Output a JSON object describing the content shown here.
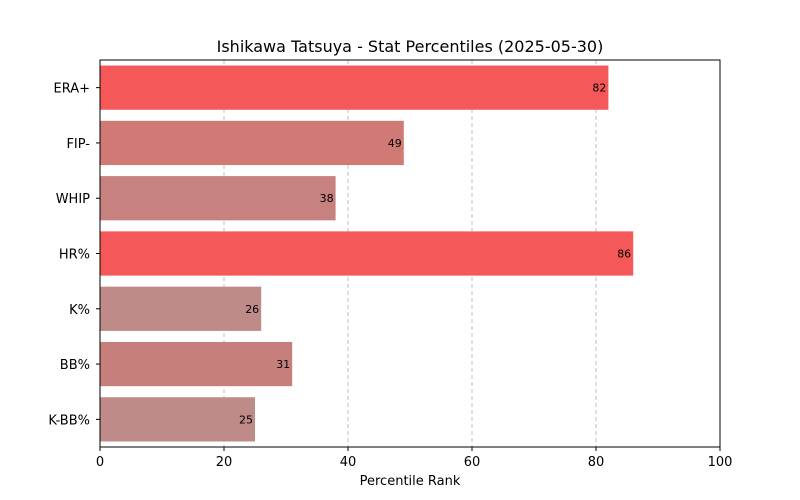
{
  "chart_data": {
    "type": "bar",
    "orientation": "horizontal",
    "title": "Ishikawa Tatsuya - Stat Percentiles (2025-05-30)",
    "xlabel": "Percentile Rank",
    "ylabel": "",
    "xlim": [
      0,
      100
    ],
    "xticks": [
      0,
      20,
      40,
      60,
      80,
      100
    ],
    "grid": "x-axis dashed",
    "categories": [
      "ERA+",
      "FIP-",
      "WHIP",
      "HR%",
      "K%",
      "BB%",
      "K-BB%"
    ],
    "values": [
      82,
      49,
      38,
      86,
      26,
      31,
      25
    ],
    "colors": [
      "#f55858",
      "#d17975",
      "#c7817e",
      "#f55858",
      "#be8b88",
      "#c77f7c",
      "#be8b88"
    ]
  }
}
